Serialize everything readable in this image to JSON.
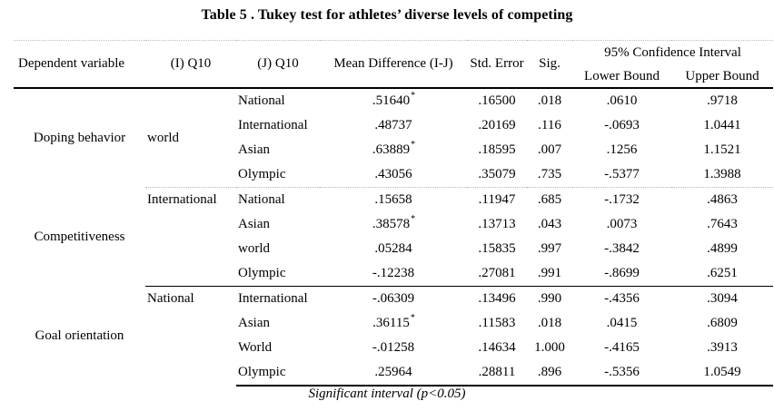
{
  "title": "Table 5 . Tukey test for athletes’ diverse levels of competing",
  "columns": {
    "dependent_variable": "Dependent variable",
    "i_q10": "(I) Q10",
    "j_q10": "(J) Q10",
    "mean_difference": "Mean Difference (I-J)",
    "std_error": "Std. Error",
    "sig": "Sig.",
    "confidence_interval": "95% Confidence Interval",
    "lower_bound": "Lower Bound",
    "upper_bound": "Upper Bound"
  },
  "groups": [
    {
      "dependent_variable": "Doping behavior",
      "i_q10": "world",
      "rows": [
        {
          "j_q10": "National",
          "mean_difference": ".51640",
          "star": "*",
          "std_error": ".16500",
          "sig": ".018",
          "lower_bound": ".0610",
          "upper_bound": ".9718"
        },
        {
          "j_q10": "International",
          "mean_difference": ".48737",
          "star": "",
          "std_error": ".20169",
          "sig": ".116",
          "lower_bound": "-.0693",
          "upper_bound": "1.0441"
        },
        {
          "j_q10": "Asian",
          "mean_difference": ".63889",
          "star": "*",
          "std_error": ".18595",
          "sig": ".007",
          "lower_bound": ".1256",
          "upper_bound": "1.1521"
        },
        {
          "j_q10": "Olympic",
          "mean_difference": ".43056",
          "star": "",
          "std_error": ".35079",
          "sig": ".735",
          "lower_bound": "-.5377",
          "upper_bound": "1.3988"
        }
      ]
    },
    {
      "dependent_variable": "Competitiveness",
      "i_q10": "International",
      "rows": [
        {
          "j_q10": "National",
          "mean_difference": ".15658",
          "star": "",
          "std_error": ".11947",
          "sig": ".685",
          "lower_bound": "-.1732",
          "upper_bound": ".4863"
        },
        {
          "j_q10": "Asian",
          "mean_difference": ".38578",
          "star": "*",
          "std_error": ".13713",
          "sig": ".043",
          "lower_bound": ".0073",
          "upper_bound": ".7643"
        },
        {
          "j_q10": "world",
          "mean_difference": ".05284",
          "star": "",
          "std_error": ".15835",
          "sig": ".997",
          "lower_bound": "-.3842",
          "upper_bound": ".4899"
        },
        {
          "j_q10": "Olympic",
          "mean_difference": "-.12238",
          "star": "",
          "std_error": ".27081",
          "sig": ".991",
          "lower_bound": "-.8699",
          "upper_bound": ".6251"
        }
      ]
    },
    {
      "dependent_variable": "Goal orientation",
      "i_q10": "National",
      "rows": [
        {
          "j_q10": "International",
          "mean_difference": "-.06309",
          "star": "",
          "std_error": ".13496",
          "sig": ".990",
          "lower_bound": "-.4356",
          "upper_bound": ".3094"
        },
        {
          "j_q10": "Asian",
          "mean_difference": ".36115",
          "star": "*",
          "std_error": ".11583",
          "sig": ".018",
          "lower_bound": ".0415",
          "upper_bound": ".6809"
        },
        {
          "j_q10": "World",
          "mean_difference": "-.01258",
          "star": "",
          "std_error": ".14634",
          "sig": "1.000",
          "lower_bound": "-.4165",
          "upper_bound": ".3913"
        },
        {
          "j_q10": "Olympic",
          "mean_difference": ".25964",
          "star": "",
          "std_error": ".28811",
          "sig": ".896",
          "lower_bound": "-.5356",
          "upper_bound": "1.0549"
        }
      ]
    }
  ],
  "footnote": "Significant interval (p<0.05)"
}
